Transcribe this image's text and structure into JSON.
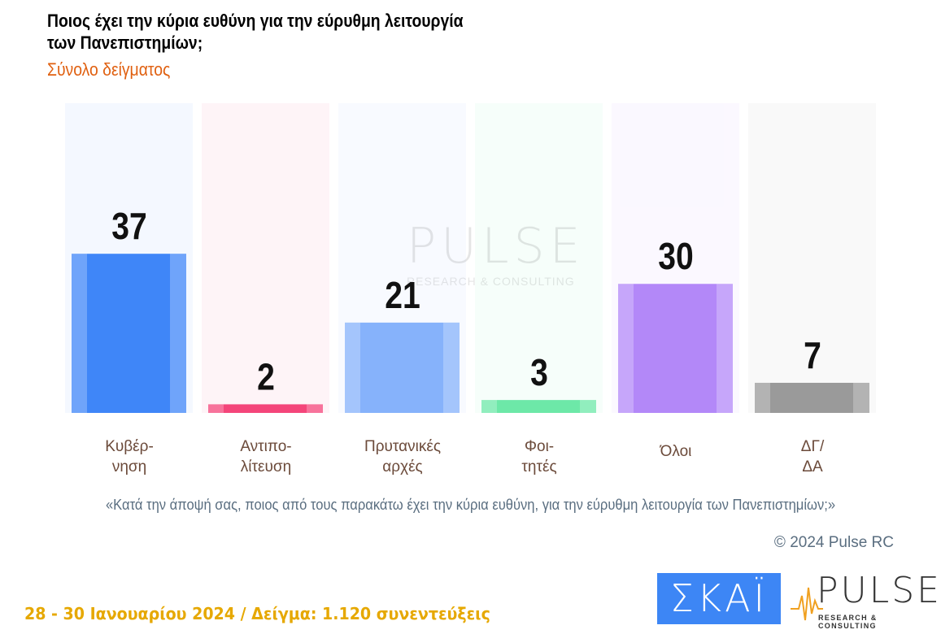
{
  "header": {
    "title": "Ποιος έχει την κύρια ευθύνη για την εύρυθμη λειτουργία των Πανεπιστημίων;",
    "subtitle": "Σύνολο δείγματος"
  },
  "chart_data": {
    "type": "bar",
    "categories": [
      "Κυβέρ-\nνηση",
      "Αντιπο-\nλίτευση",
      "Πρυτανικές\nαρχές",
      "Φοι-\nτητές",
      "Όλοι",
      "ΔΓ/\nΔΑ"
    ],
    "values": [
      37,
      2,
      21,
      3,
      30,
      7
    ],
    "colors": [
      "#3f86f8",
      "#f4457a",
      "#86b2fb",
      "#6de8a8",
      "#b388f8",
      "#9a9a9a"
    ],
    "ylim": [
      0,
      72
    ],
    "grid": false
  },
  "question": "«Κατά την άποψή σας, ποιος από τους παρακάτω έχει την κύρια ευθύνη, για την εύρυθμη λειτουργία των Πανεπιστημίων;»",
  "copyright": "© 2024 Pulse RC",
  "footer": "28 - 30  Ιανουαρίου  2024  /  Δείγμα:  1.120 συνεντεύξεις",
  "logos": {
    "skai": "ΣΚΑΪ",
    "pulse": "PULSE",
    "pulse_sub": "RESEARCH & CONSULTING",
    "watermark": "PULSE",
    "watermark_sub": "RESEARCH & CONSULTING"
  }
}
